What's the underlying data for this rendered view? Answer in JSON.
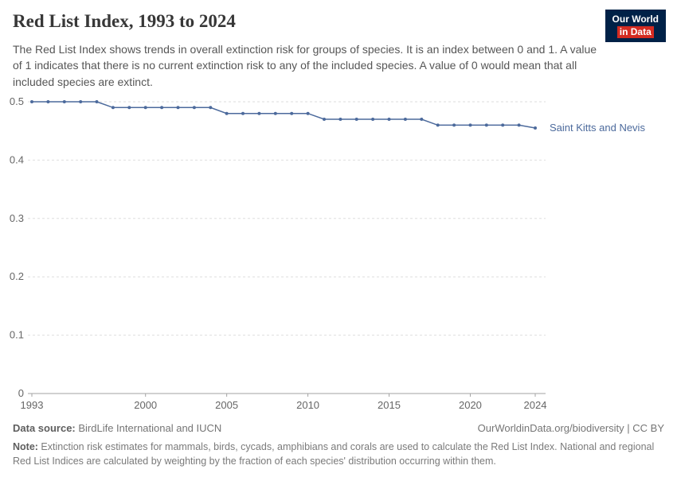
{
  "header": {
    "title": "Red List Index, 1993 to 2024",
    "subtitle": "The Red List Index shows trends in overall extinction risk for groups of species. It is an index between 0 and 1. A value of 1 indicates that there is no current extinction risk to any of the included species. A value of 0 would mean that all included species are extinct.",
    "logo": {
      "line1": "Our World",
      "line2": "in Data",
      "bg": "#002147",
      "accent": "#d42b21"
    }
  },
  "chart_data": {
    "type": "line",
    "title": "Red List Index, 1993 to 2024",
    "x": [
      1993,
      1994,
      1995,
      1996,
      1997,
      1998,
      1999,
      2000,
      2001,
      2002,
      2003,
      2004,
      2005,
      2006,
      2007,
      2008,
      2009,
      2010,
      2011,
      2012,
      2013,
      2014,
      2015,
      2016,
      2017,
      2018,
      2019,
      2020,
      2021,
      2022,
      2023,
      2024
    ],
    "series": [
      {
        "name": "Saint Kitts and Nevis",
        "color": "#4C6A9C",
        "values": [
          0.5,
          0.5,
          0.5,
          0.5,
          0.5,
          0.49,
          0.49,
          0.49,
          0.49,
          0.49,
          0.49,
          0.49,
          0.48,
          0.48,
          0.48,
          0.48,
          0.48,
          0.48,
          0.47,
          0.47,
          0.47,
          0.47,
          0.47,
          0.47,
          0.47,
          0.46,
          0.46,
          0.46,
          0.46,
          0.46,
          0.46,
          0.455
        ]
      }
    ],
    "ylim": [
      0,
      0.5
    ],
    "yticks": [
      0,
      0.1,
      0.2,
      0.3,
      0.4,
      0.5
    ],
    "xticks": [
      1993,
      2000,
      2005,
      2010,
      2015,
      2020,
      2024
    ],
    "grid": true,
    "legend_position": "end-of-line",
    "xlabel": "",
    "ylabel": ""
  },
  "footer": {
    "source_label": "Data source:",
    "source_text": " BirdLife International and IUCN",
    "rights": "OurWorldinData.org/biodiversity | CC BY",
    "note_label": "Note:",
    "note_text": " Extinction risk estimates for mammals, birds, cycads, amphibians and corals are used to calculate the Red List Index. National and regional Red List Indices are calculated by weighting by the fraction of each species' distribution occurring within them."
  }
}
